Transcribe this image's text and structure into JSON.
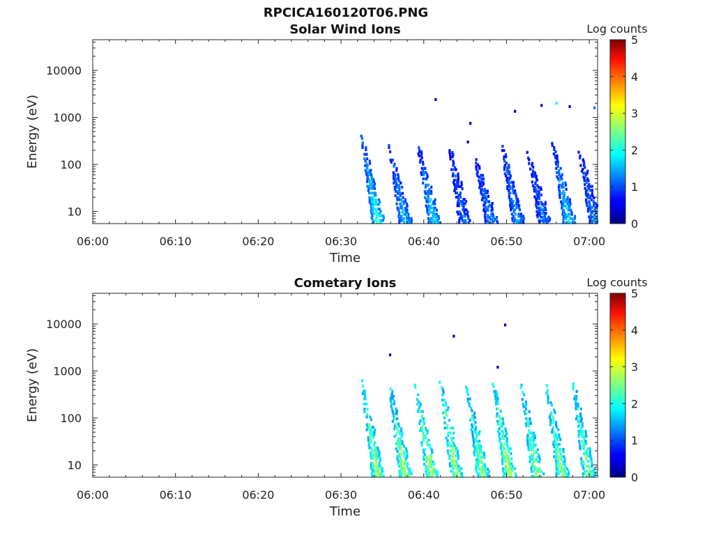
{
  "figure": {
    "title": "RPCICA160120T06.PNG"
  },
  "chart_data": [
    {
      "type": "heatmap",
      "title": "Solar Wind Ions",
      "xlabel": "Time",
      "ylabel": "Energy (eV)",
      "y_scale": "log",
      "x_range": [
        "06:00",
        "07:01"
      ],
      "y_range": [
        5.5,
        45000
      ],
      "x_ticks": [
        "06:00",
        "06:10",
        "06:20",
        "06:30",
        "06:40",
        "06:50",
        "07:00"
      ],
      "y_ticks": [
        {
          "value": 10,
          "label": "10"
        },
        {
          "value": 100,
          "label": "100"
        },
        {
          "value": 1000,
          "label": "1000"
        },
        {
          "value": 10000,
          "label": "10000"
        }
      ],
      "colorbar": {
        "label": "Log counts",
        "min": 0,
        "max": 5,
        "ticks": [
          "0",
          "1",
          "2",
          "3",
          "4",
          "5"
        ]
      },
      "bursts": [
        {
          "t": "06:32.5",
          "top_energy": 400,
          "mid_counts": 1.0,
          "low_counts": 2.2
        },
        {
          "t": "06:35.8",
          "top_energy": 280,
          "mid_counts": 0.9,
          "low_counts": 1.6
        },
        {
          "t": "06:39.3",
          "top_energy": 280,
          "mid_counts": 0.9,
          "low_counts": 1.8
        },
        {
          "t": "06:43.0",
          "top_energy": 300,
          "mid_counts": 0.8,
          "low_counts": 1.2
        },
        {
          "t": "06:46.2",
          "top_energy": 150,
          "mid_counts": 0.8,
          "low_counts": 1.4
        },
        {
          "t": "06:49.4",
          "top_energy": 300,
          "mid_counts": 0.9,
          "low_counts": 1.5
        },
        {
          "t": "06:52.6",
          "top_energy": 180,
          "mid_counts": 0.8,
          "low_counts": 1.3
        },
        {
          "t": "06:55.6",
          "top_energy": 280,
          "mid_counts": 0.9,
          "low_counts": 1.8
        },
        {
          "t": "06:58.8",
          "top_energy": 200,
          "mid_counts": 0.8,
          "low_counts": 1.4
        }
      ],
      "isolated_points": [
        {
          "t": "06:41.3",
          "energy": 2400,
          "counts": 0.3
        },
        {
          "t": "06:45.5",
          "energy": 750,
          "counts": 0.2
        },
        {
          "t": "06:50.9",
          "energy": 1350,
          "counts": 0.2
        },
        {
          "t": "06:54.1",
          "energy": 1800,
          "counts": 0.3
        },
        {
          "t": "06:55.9",
          "energy": 2000,
          "counts": 1.8
        },
        {
          "t": "06:57.5",
          "energy": 1700,
          "counts": 0.4
        },
        {
          "t": "07:00.5",
          "energy": 1600,
          "counts": 1.2
        },
        {
          "t": "06:45.2",
          "energy": 300,
          "counts": 0.2
        }
      ]
    },
    {
      "type": "heatmap",
      "title": "Cometary Ions",
      "xlabel": "Time",
      "ylabel": "Energy (eV)",
      "y_scale": "log",
      "x_range": [
        "06:00",
        "07:01"
      ],
      "y_range": [
        5.5,
        45000
      ],
      "x_ticks": [
        "06:00",
        "06:10",
        "06:20",
        "06:30",
        "06:40",
        "06:50",
        "07:00"
      ],
      "y_ticks": [
        {
          "value": 10,
          "label": "10"
        },
        {
          "value": 100,
          "label": "100"
        },
        {
          "value": 1000,
          "label": "1000"
        },
        {
          "value": 10000,
          "label": "10000"
        }
      ],
      "colorbar": {
        "label": "Log counts",
        "min": 0,
        "max": 5,
        "ticks": [
          "0",
          "1",
          "2",
          "3",
          "4",
          "5"
        ]
      },
      "bursts": [
        {
          "t": "06:32.5",
          "top_energy": 700,
          "mid_counts": 1.9,
          "low_counts": 2.8
        },
        {
          "t": "06:35.8",
          "top_energy": 600,
          "mid_counts": 1.8,
          "low_counts": 2.9
        },
        {
          "t": "06:39.0",
          "top_energy": 500,
          "mid_counts": 1.9,
          "low_counts": 2.9
        },
        {
          "t": "06:42.0",
          "top_energy": 650,
          "mid_counts": 1.9,
          "low_counts": 2.8
        },
        {
          "t": "06:45.2",
          "top_energy": 450,
          "mid_counts": 1.8,
          "low_counts": 2.8
        },
        {
          "t": "06:48.4",
          "top_energy": 600,
          "mid_counts": 2.0,
          "low_counts": 2.9
        },
        {
          "t": "06:51.8",
          "top_energy": 500,
          "mid_counts": 1.8,
          "low_counts": 2.7
        },
        {
          "t": "06:54.8",
          "top_energy": 550,
          "mid_counts": 1.8,
          "low_counts": 2.8
        },
        {
          "t": "06:58.0",
          "top_energy": 600,
          "mid_counts": 1.8,
          "low_counts": 2.7
        }
      ],
      "isolated_points": [
        {
          "t": "06:35.8",
          "energy": 2200,
          "counts": 0.2
        },
        {
          "t": "06:43.5",
          "energy": 5500,
          "counts": 0.3
        },
        {
          "t": "06:49.7",
          "energy": 9500,
          "counts": 0.3
        },
        {
          "t": "06:48.8",
          "energy": 1200,
          "counts": 0.3
        }
      ]
    }
  ]
}
